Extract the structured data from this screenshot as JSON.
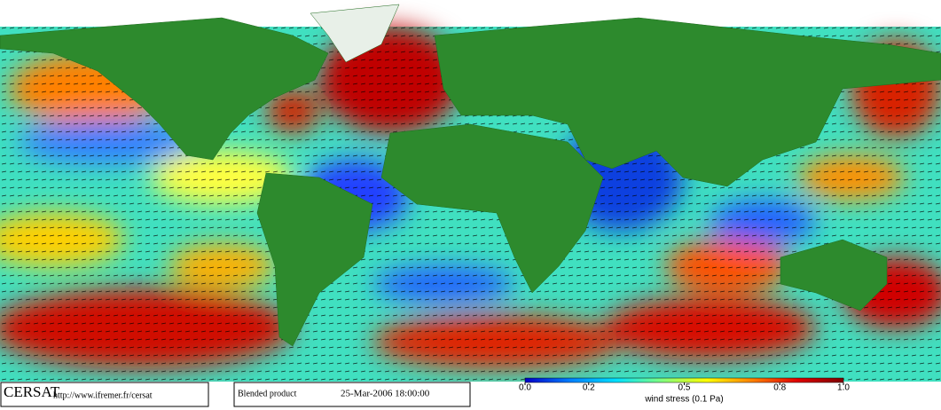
{
  "footer": {
    "logo": "CERSAT",
    "url": "http://www.ifremer.fr/cersat",
    "product": "Blended product",
    "timestamp": "25-Mar-2006 18:00:00"
  },
  "colorbar": {
    "label": "wind stress (0.1 Pa)",
    "lim": [
      0,
      1
    ],
    "ticks": [
      {
        "value": 0,
        "label": "0.0"
      },
      0.2,
      0.5,
      0.8,
      {
        "value": 1,
        "label": "1.0"
      }
    ],
    "colors": [
      "#0000c8",
      "#0080ff",
      "#00e0ff",
      "#80ff80",
      "#ffff00",
      "#ff8000",
      "#e00000",
      "#800000"
    ]
  }
}
